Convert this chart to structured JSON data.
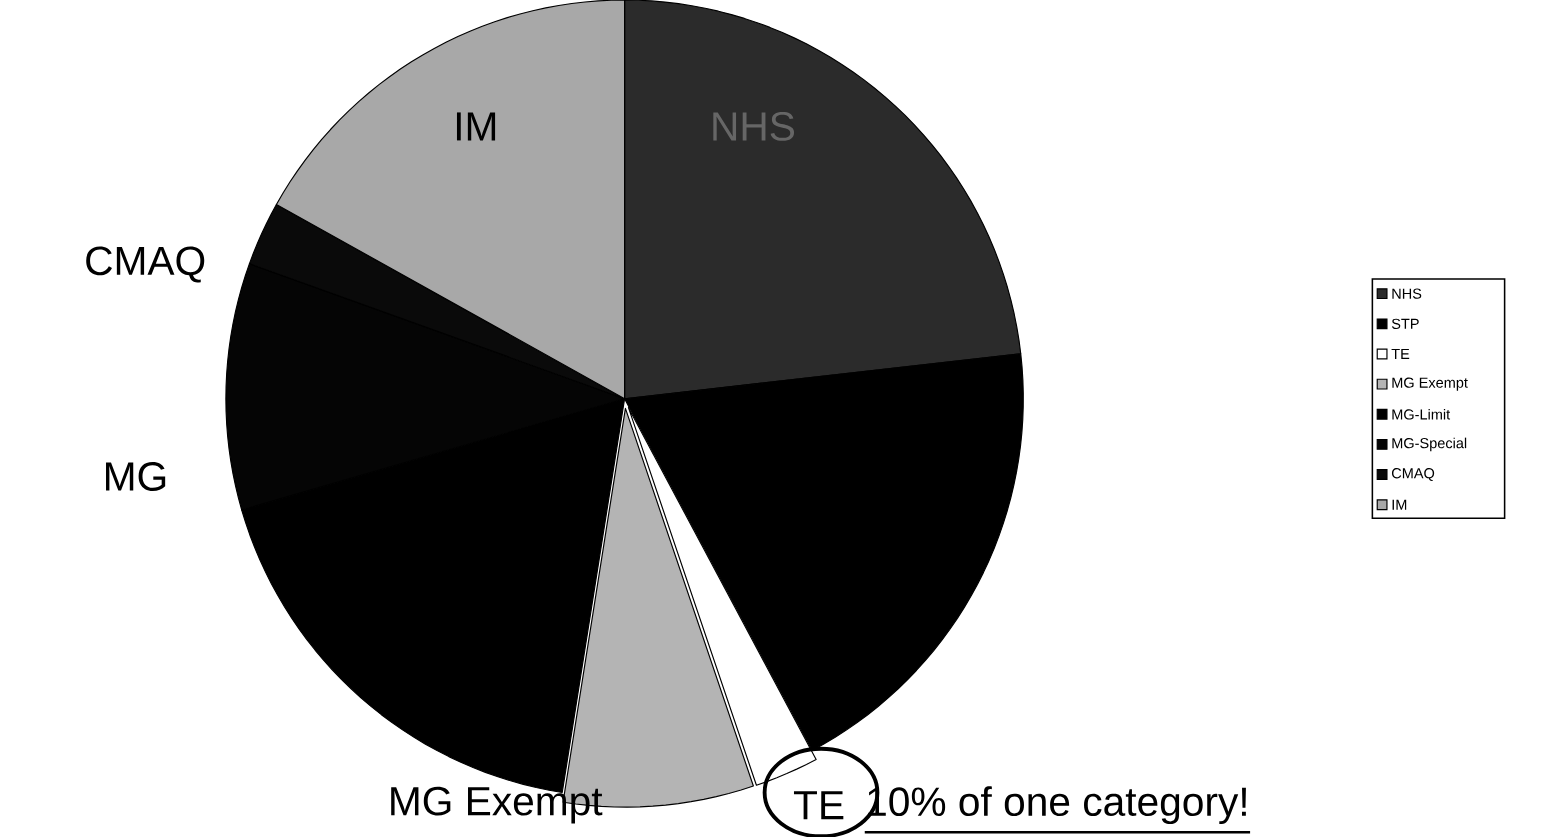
{
  "chart_data": {
    "type": "pie",
    "categories": [
      "NHS",
      "STP",
      "TE",
      "MG Exempt",
      "MG-Limit",
      "MG-Special",
      "CMAQ",
      "IM"
    ],
    "values": [
      23.2,
      19.0,
      2.6,
      7.7,
      18.0,
      10.0,
      2.6,
      16.9
    ],
    "colors": [
      "#2b2b2b",
      "#000000",
      "#ffffff",
      "#b4b4b4",
      "#000000",
      "#050505",
      "#0a0a0a",
      "#a8a8a8"
    ],
    "legend": "right",
    "annotations": [
      "IM",
      "NHS",
      "CMAQ",
      "MG",
      "MG Exempt",
      "TE",
      "10% of one category!"
    ]
  }
}
